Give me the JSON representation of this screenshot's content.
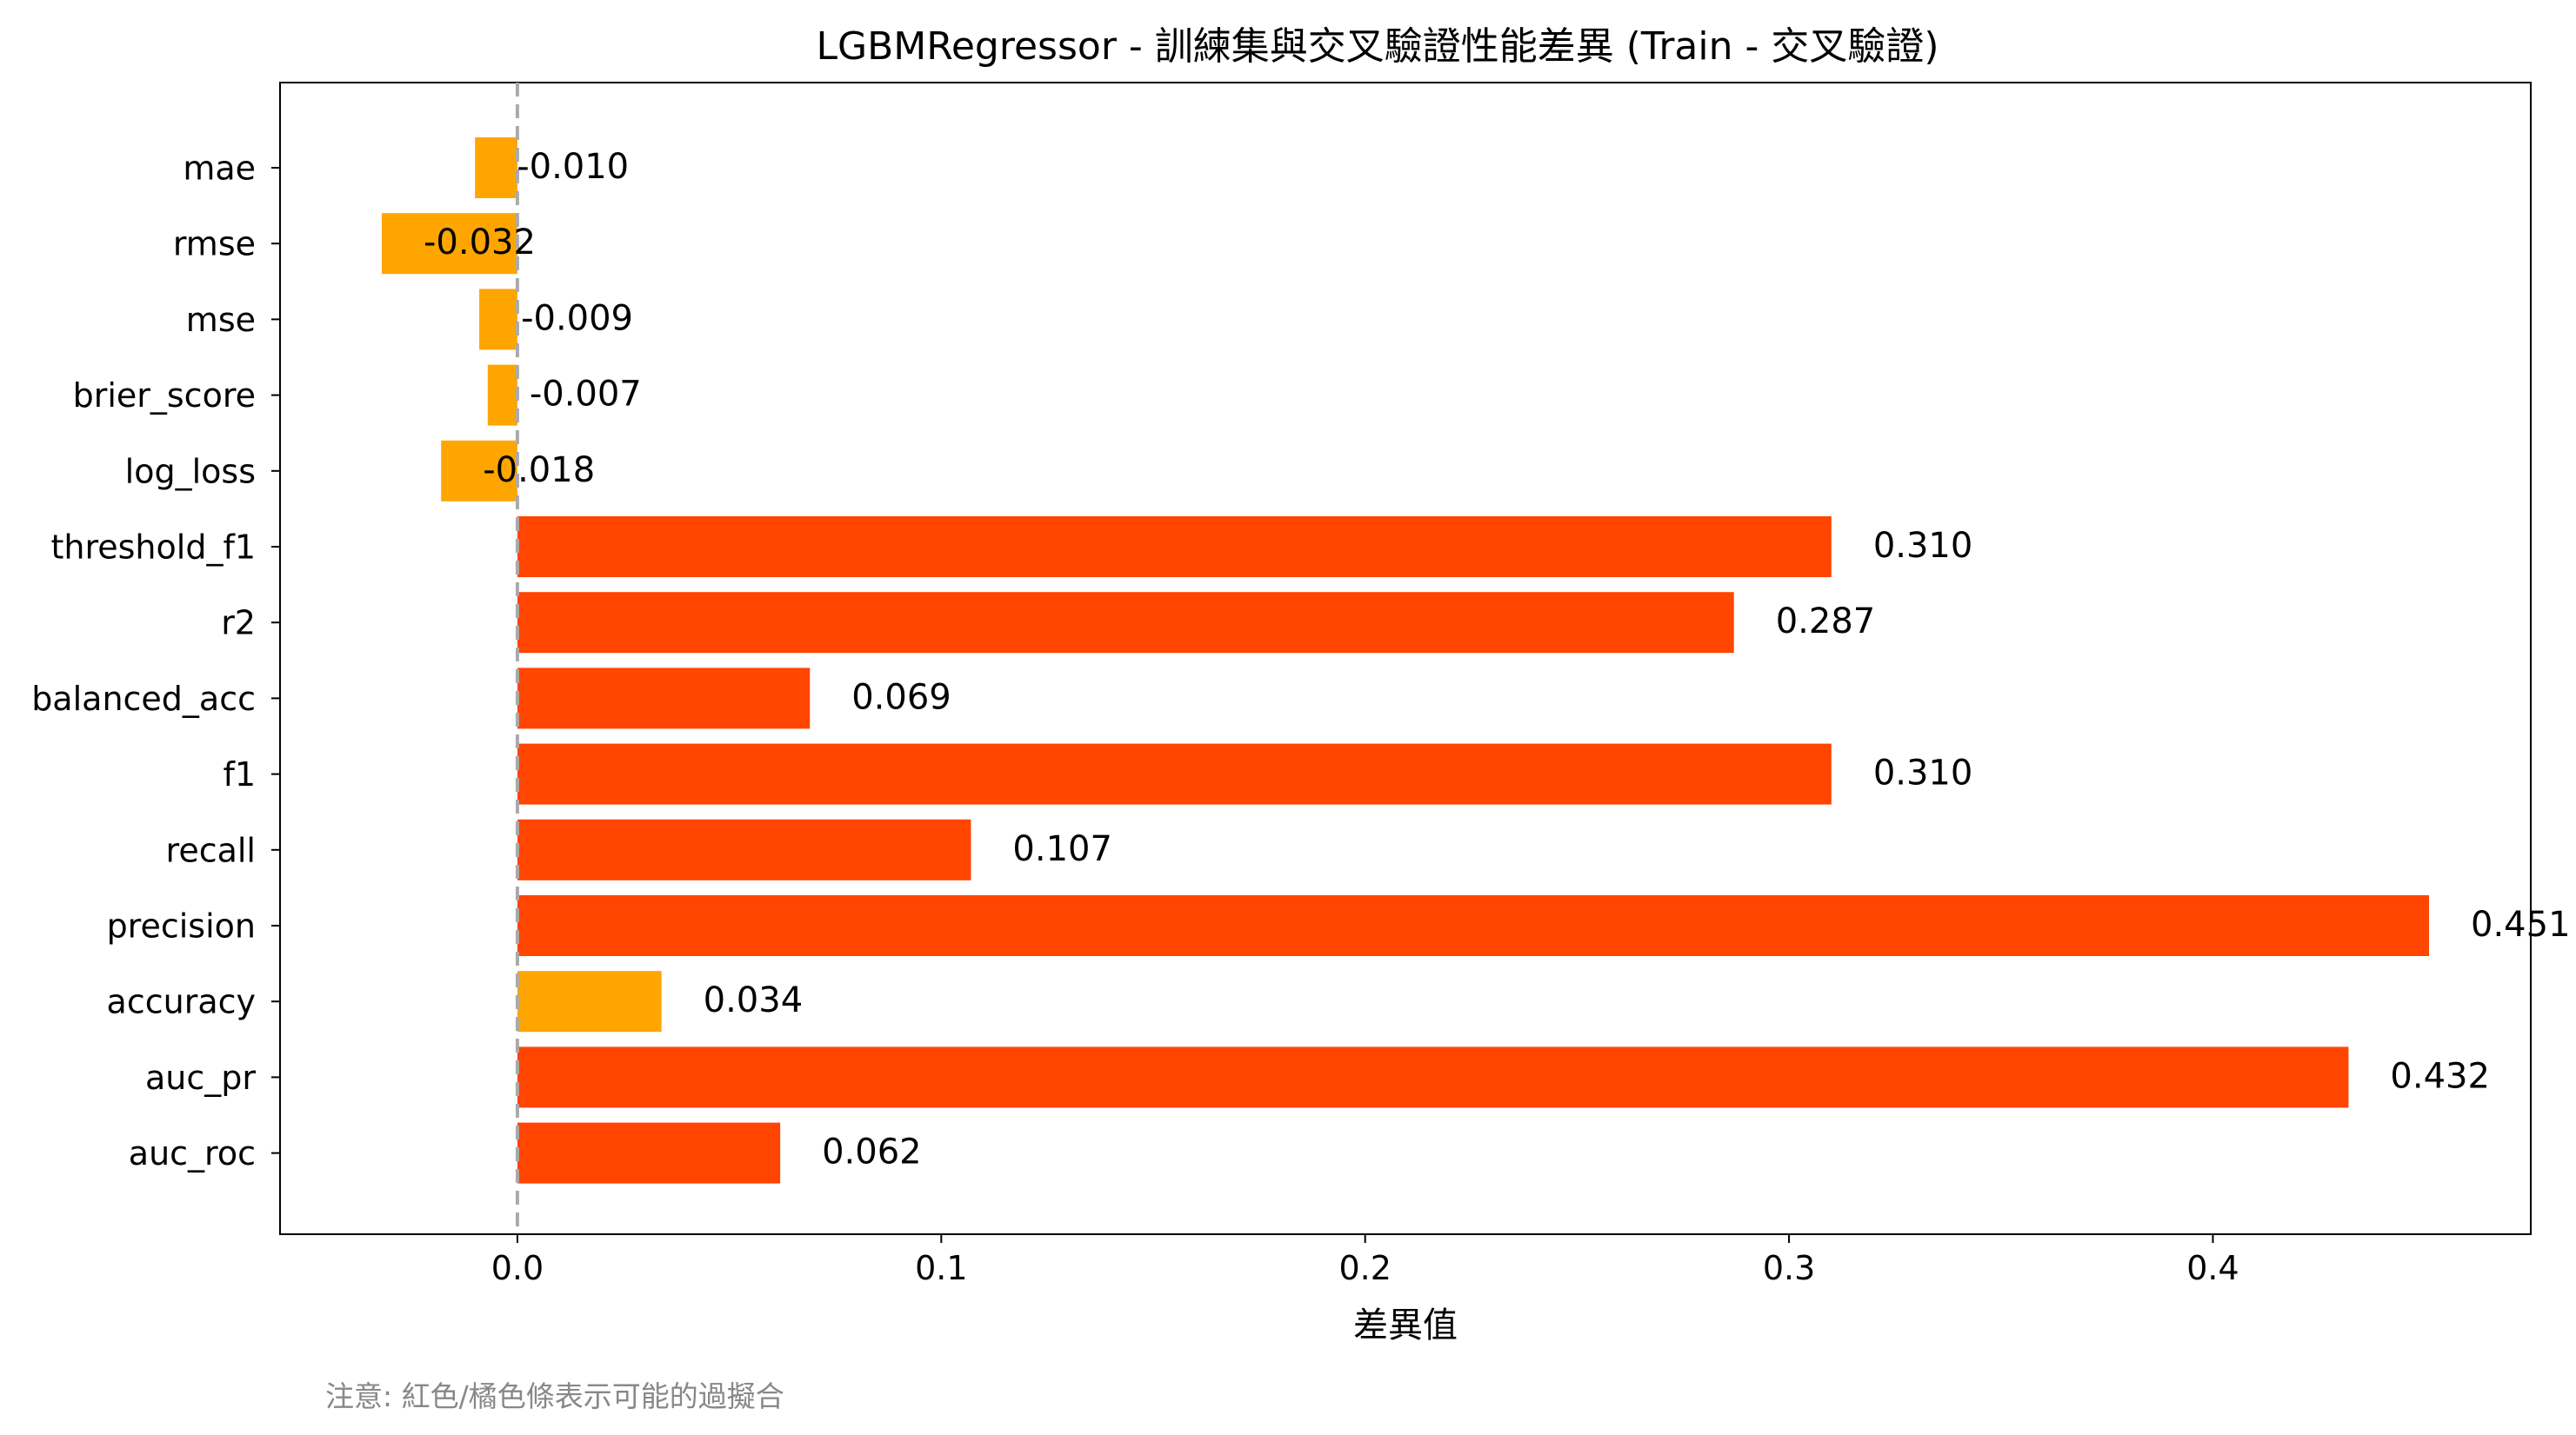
{
  "chart_data": {
    "type": "bar",
    "orientation": "horizontal",
    "title": "LGBMRegressor - 訓練集與交叉驗證性能差異 (Train - 交叉驗證)",
    "xlabel": "差異值",
    "ylabel": "",
    "categories": [
      "mae",
      "rmse",
      "mse",
      "brier_score",
      "log_loss",
      "threshold_f1",
      "r2",
      "balanced_acc",
      "f1",
      "recall",
      "precision",
      "accuracy",
      "auc_pr",
      "auc_roc"
    ],
    "values": [
      -0.01,
      -0.032,
      -0.009,
      -0.007,
      -0.018,
      0.31,
      0.287,
      0.069,
      0.31,
      0.107,
      0.451,
      0.034,
      0.432,
      0.062
    ],
    "value_labels": [
      "-0.010",
      "-0.032",
      "-0.009",
      "-0.007",
      "-0.018",
      "0.310",
      "0.287",
      "0.069",
      "0.310",
      "0.107",
      "0.451",
      "0.034",
      "0.432",
      "0.062"
    ],
    "bar_colors": [
      "#ffa500",
      "#ffa500",
      "#ffa500",
      "#ffa500",
      "#ffa500",
      "#ff4500",
      "#ff4500",
      "#ff4500",
      "#ff4500",
      "#ff4500",
      "#ff4500",
      "#ffa500",
      "#ff4500",
      "#ff4500"
    ],
    "xlim": [
      -0.056,
      0.475
    ],
    "xticks": [
      0.0,
      0.1,
      0.2,
      0.3,
      0.4
    ],
    "xtick_labels": [
      "0.0",
      "0.1",
      "0.2",
      "0.3",
      "0.4"
    ],
    "reference_line": {
      "x": 0,
      "style": "dashed",
      "color": "#aaaaaa"
    },
    "grid": false,
    "note": "注意: 紅色/橘色條表示可能的過擬合"
  }
}
